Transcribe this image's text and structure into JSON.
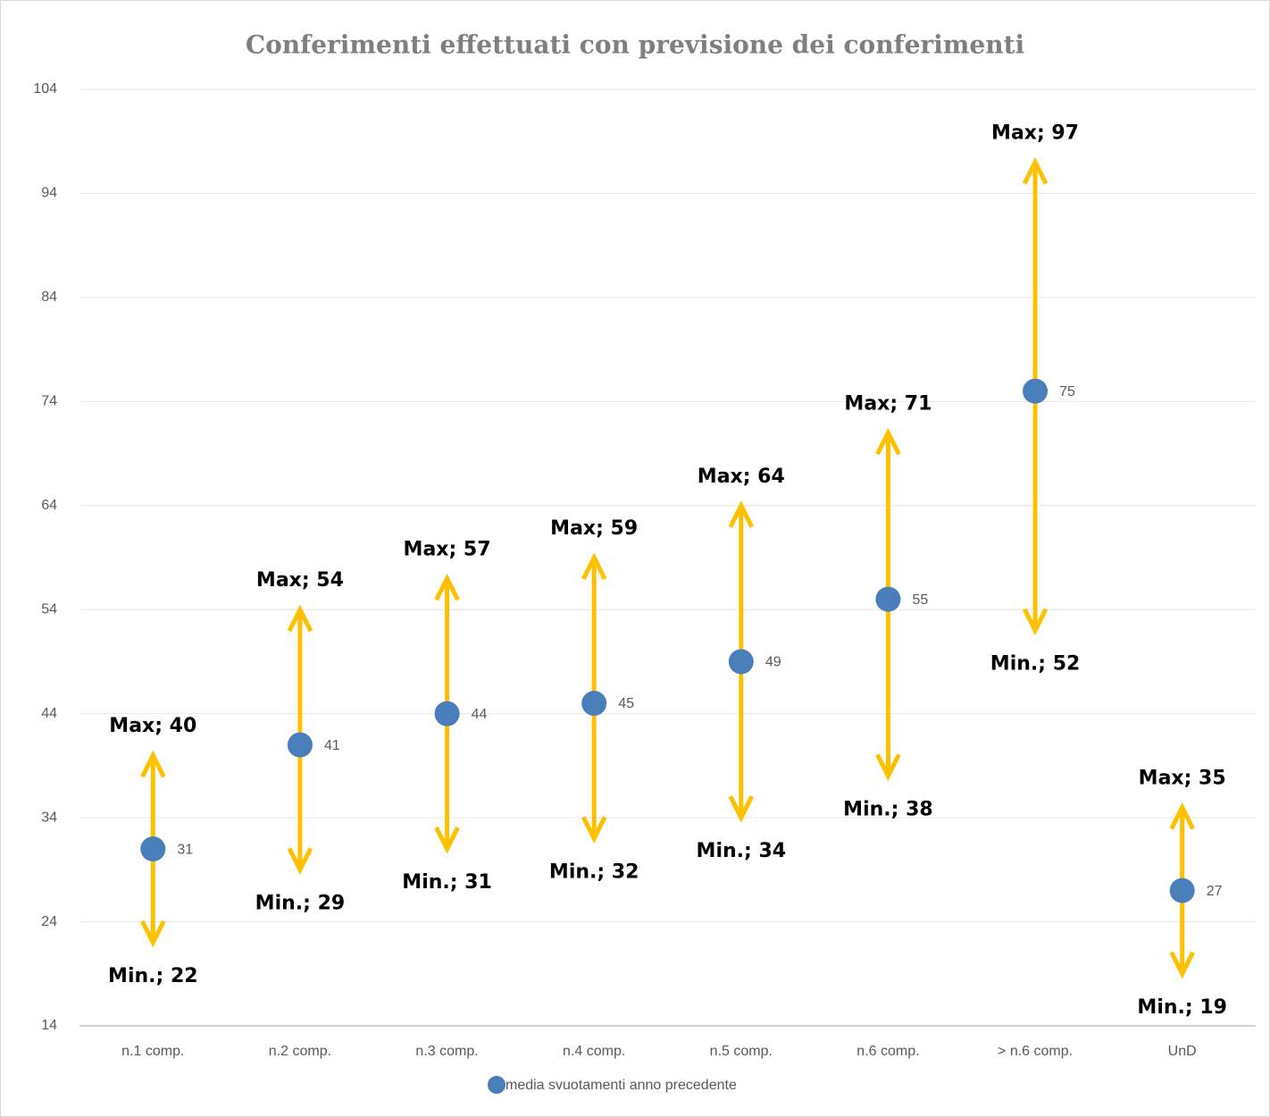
{
  "chart_data": {
    "type": "range",
    "title": "Conferimenti effettuati con previsione dei conferimenti",
    "categories": [
      "n.1 comp.",
      "n.2 comp.",
      "n.3 comp.",
      "n.4 comp.",
      "n.5 comp.",
      "n.6 comp.",
      "> n.6 comp.",
      "UnD"
    ],
    "series": [
      {
        "name": "media svuotamenti anno precedente",
        "color": "#4a7ebb",
        "values": [
          31,
          41,
          44,
          45,
          49,
          55,
          75,
          27
        ]
      }
    ],
    "max": {
      "color": "#ffc000",
      "values": [
        40,
        54,
        57,
        59,
        64,
        71,
        97,
        35
      ],
      "value_labels": [
        "Max;  40",
        "Max;  54",
        "Max;  57",
        "Max;  59",
        "Max;  64",
        "Max;  71",
        "Max;  97",
        "Max;  35"
      ]
    },
    "min": {
      "color": "#ffc000",
      "values": [
        22,
        29,
        31,
        32,
        34,
        38,
        52,
        19
      ],
      "value_labels": [
        "Min.;  22",
        "Min.;  29",
        "Min.;  31",
        "Min.;  32",
        "Min.;  34",
        "Min.;  38",
        "Min.;  52",
        "Min.;  19"
      ]
    },
    "ylim": [
      14,
      104
    ],
    "yticks": [
      14,
      24,
      34,
      44,
      54,
      64,
      74,
      84,
      94,
      104
    ],
    "grid": true,
    "legend": "bottom"
  }
}
